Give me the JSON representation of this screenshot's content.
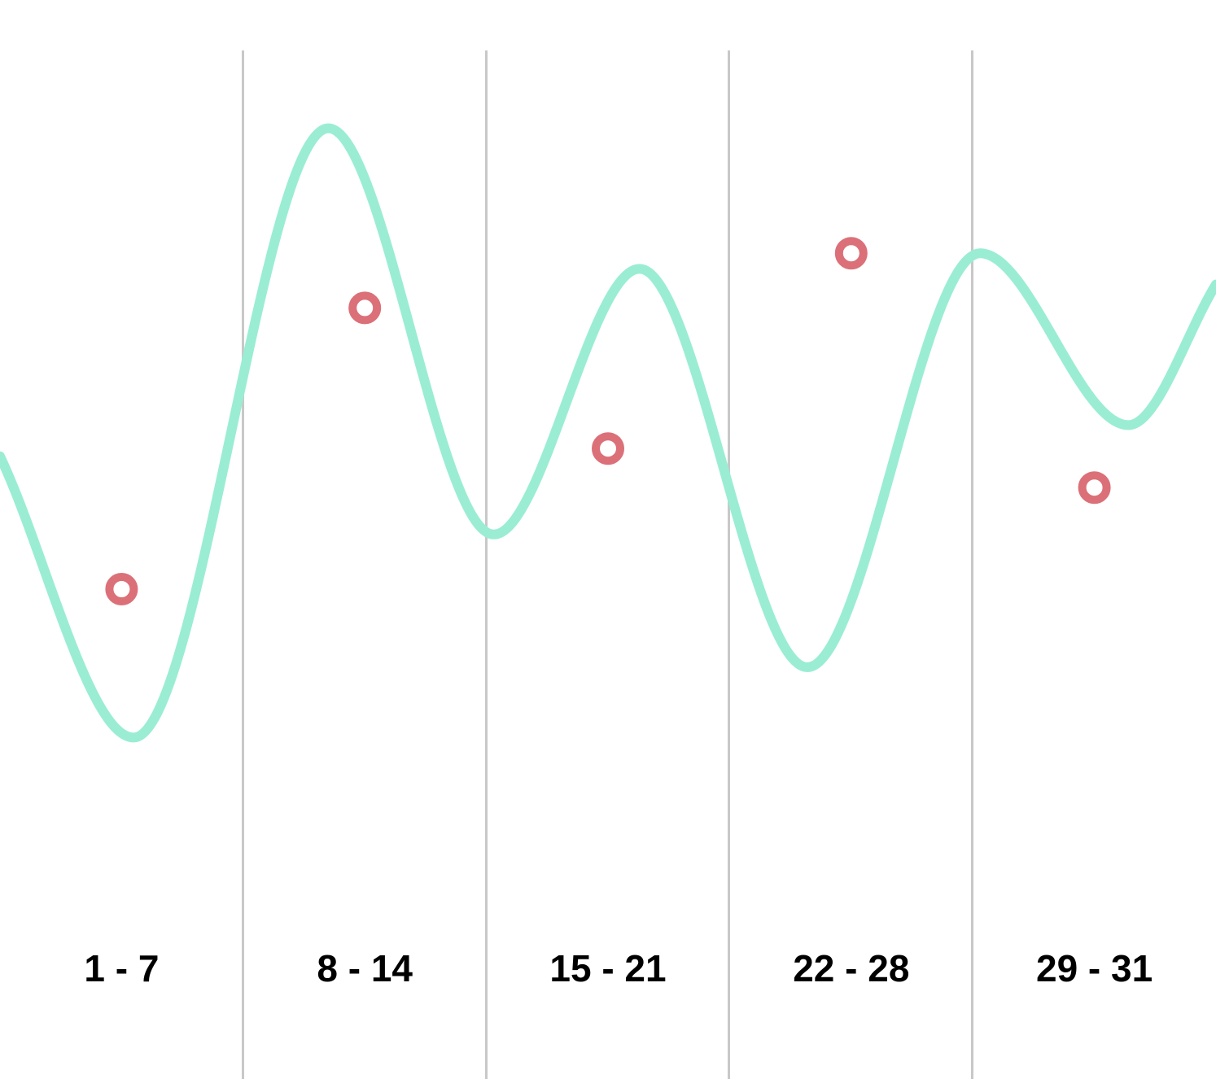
{
  "chart_data": {
    "type": "line",
    "title": "",
    "xlabel": "",
    "ylabel": "",
    "categories": [
      "1 - 7",
      "8 - 14",
      "15 - 21",
      "22 - 28",
      "29 - 31"
    ],
    "grid": "vertical separators between categories",
    "legend": "none",
    "ylim": [
      0,
      100
    ],
    "series": [
      {
        "style": "smooth-line",
        "color": "#9aedd3",
        "x": [
          0,
          0.55,
          1.35,
          2.03,
          2.63,
          3.32,
          4.03,
          4.64,
          5.0
        ],
        "values": [
          52,
          16,
          94,
          42,
          76,
          25,
          78,
          56,
          74
        ]
      },
      {
        "style": "points",
        "color": "#db7078",
        "x": [
          0.5,
          1.5,
          2.5,
          3.5,
          4.5
        ],
        "values": [
          35,
          71,
          53,
          78,
          48
        ]
      }
    ]
  }
}
